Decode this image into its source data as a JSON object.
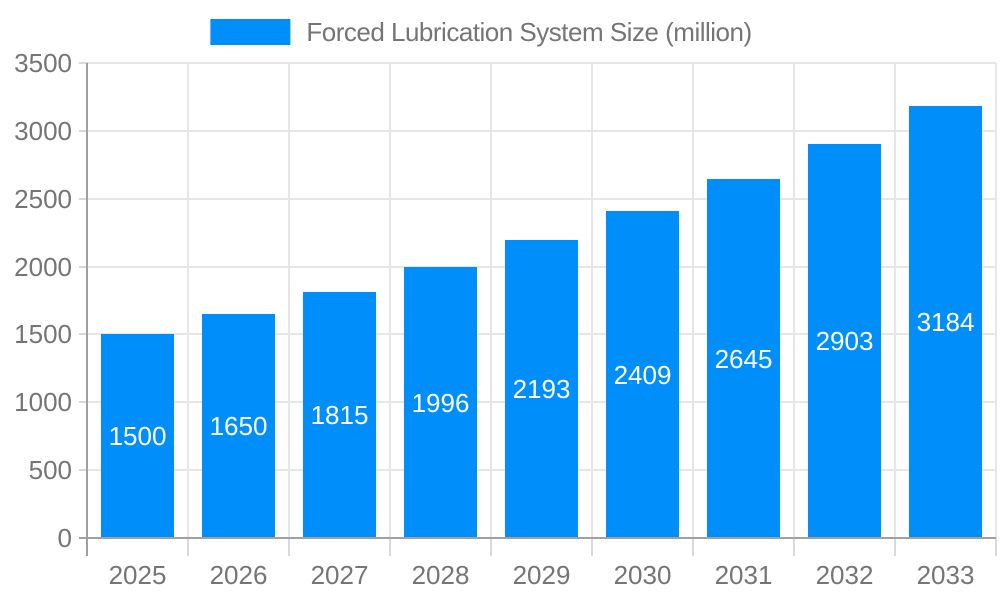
{
  "legend": {
    "label": "Forced Lubrication System Size (million)"
  },
  "colors": {
    "bar": "#008FFA",
    "grid": "#E6E6E6",
    "axis": "#A0A0A0",
    "tick": "#D9D9D9",
    "label": "#757575",
    "value_label": "#FFFFFF",
    "background": "#FFFFFF"
  },
  "chart_data": {
    "type": "bar",
    "title": "Forced Lubrication System Size (million)",
    "xlabel": "",
    "ylabel": "",
    "categories": [
      "2025",
      "2026",
      "2027",
      "2028",
      "2029",
      "2030",
      "2031",
      "2032",
      "2033"
    ],
    "values": [
      1500,
      1650,
      1815,
      1996,
      2193,
      2409,
      2645,
      2903,
      3184
    ],
    "ylim": [
      0,
      3500
    ],
    "ytick_step": 500,
    "yticks": [
      0,
      500,
      1000,
      1500,
      2000,
      2500,
      3000,
      3500
    ],
    "grid": true,
    "bar_labels": "inside-center",
    "legend_position": "top"
  }
}
